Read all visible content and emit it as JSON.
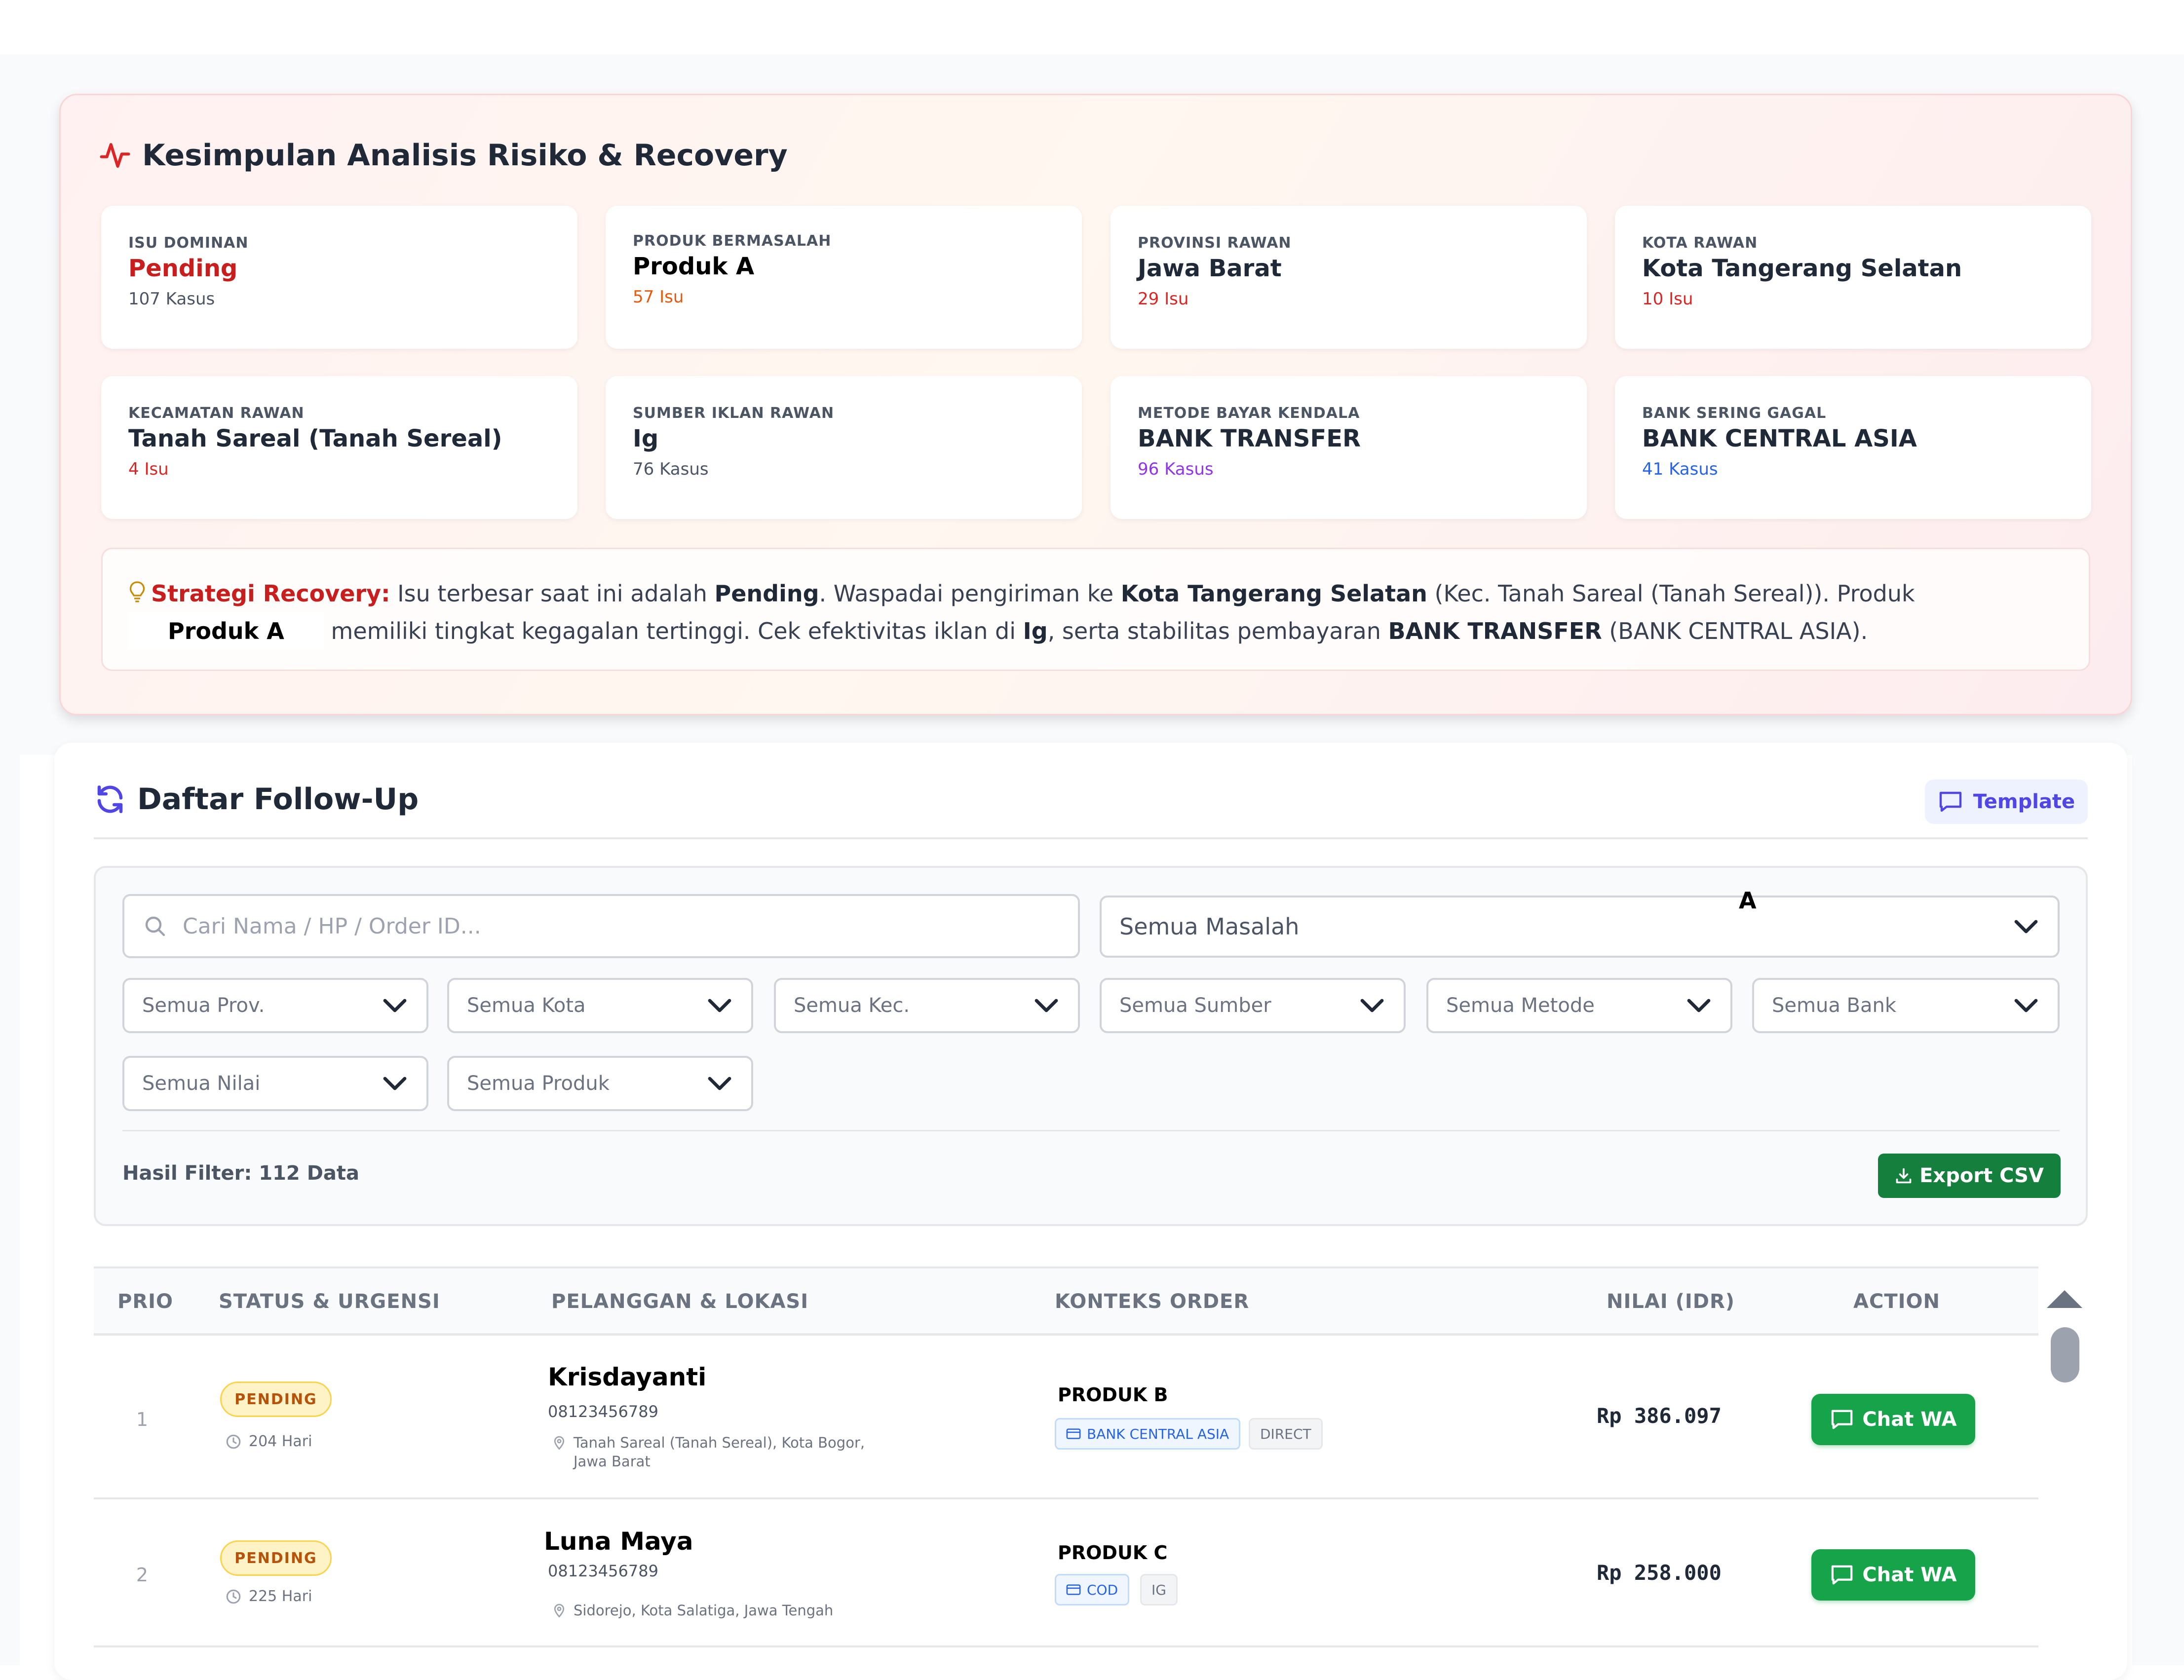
{
  "risk": {
    "title": "Kesimpulan Analisis Risiko & Recovery",
    "icon": "activity-icon",
    "cards": [
      {
        "label": "ISU DOMINAN",
        "value": "Pending",
        "sub": "107 Kasus"
      },
      {
        "label": "PRODUK BERMASALAH",
        "value": "Produk A",
        "sub": "57 Isu"
      },
      {
        "label": "PROVINSI RAWAN",
        "value": "Jawa Barat",
        "sub": "29 Isu"
      },
      {
        "label": "KOTA RAWAN",
        "value": "Kota Tangerang Selatan",
        "sub": "10 Isu"
      },
      {
        "label": "KECAMATAN RAWAN",
        "value": "Tanah Sareal (Tanah Sereal)",
        "sub": "4 Isu"
      },
      {
        "label": "SUMBER IKLAN RAWAN",
        "value": "Ig",
        "sub": "76 Kasus"
      },
      {
        "label": "METODE BAYAR KENDALA",
        "value": "BANK TRANSFER",
        "sub": "96 Kasus"
      },
      {
        "label": "BANK SERING GAGAL",
        "value": "BANK CENTRAL ASIA",
        "sub": "41 Kasus"
      }
    ],
    "strategy": {
      "label": "Strategi Recovery:",
      "t1": " Isu terbesar saat ini adalah ",
      "issue": "Pending",
      "t2": ". Waspadai pengiriman ke ",
      "city": "Kota Tangerang Selatan",
      "t3": " (Kec. Tanah Sareal (Tanah Sereal)). Produk ",
      "product": "Produk A",
      "t4": " memiliki tingkat kegagalan tertinggi. Cek efektivitas iklan di ",
      "source": "Ig",
      "t5": ", serta stabilitas pembayaran ",
      "method": "BANK TRANSFER",
      "t6": " (BANK CENTRAL ASIA)."
    }
  },
  "followup": {
    "title": "Daftar Follow-Up",
    "template_label": "Template",
    "search_placeholder": "Cari Nama / HP / Order ID...",
    "problem_select": "Semua Masalah",
    "floating_label": "A",
    "filters": [
      "Semua Prov.",
      "Semua Kota",
      "Semua Kec.",
      "Semua Sumber",
      "Semua Metode",
      "Semua Bank",
      "Semua Nilai",
      "Semua Produk"
    ],
    "result_label": "Hasil Filter: 112 Data",
    "export_label": "Export CSV"
  },
  "table": {
    "headers": [
      "PRIO",
      "STATUS & URGENSI",
      "PELANGGAN & LOKASI",
      "KONTEKS ORDER",
      "NILAI (IDR)",
      "ACTION"
    ],
    "rows": [
      {
        "prio": "1",
        "status": "PENDING",
        "days": "204 Hari",
        "name": "Krisdayanti",
        "phone": "08123456789",
        "location": "Tanah Sareal (Tanah Sereal), Kota Bogor, Jawa Barat",
        "product": "PRODUK B",
        "bank": "BANK CENTRAL ASIA",
        "source": "DIRECT",
        "amount": "Rp 386.097",
        "action": "Chat WA"
      },
      {
        "prio": "2",
        "status": "PENDING",
        "days": "225 Hari",
        "name": "Luna Maya",
        "phone": "08123456789",
        "location": "Sidorejo, Kota Salatiga, Jawa Tengah",
        "product": "PRODUK C",
        "bank": "COD",
        "source": "IG",
        "amount": "Rp 258.000",
        "action": "Chat WA"
      }
    ]
  },
  "colors": {
    "accent_red": "#c81e1e",
    "whatsapp_green": "#16a34a",
    "export_green": "#15803d",
    "indigo": "#4f46e5"
  }
}
